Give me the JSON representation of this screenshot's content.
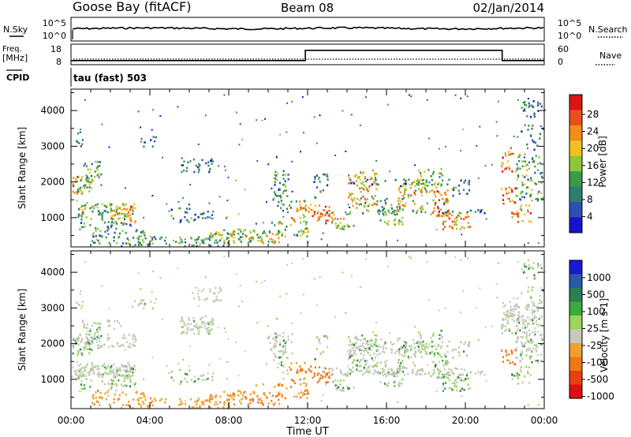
{
  "header": {
    "station": "Goose Bay (fitACF)",
    "beam": "Beam 08",
    "date": "02/Jan/2014"
  },
  "strips": {
    "nsky_label": "N.Sky",
    "nsearch_label": "N.Search",
    "noise_ticks_left": [
      "10^5",
      "10^0"
    ],
    "noise_ticks_right": [
      "10^5",
      "10^0"
    ],
    "freq_label_1": "Freq.",
    "freq_label_2": "[MHz]",
    "freq_ticks": [
      "18",
      "8"
    ],
    "nave_label": "Nave",
    "nave_ticks": [
      "60",
      "0"
    ],
    "cpid_label": "CPID",
    "cpid_value": "tau (fast) 503"
  },
  "colors": {
    "power_scale": [
      "#1414c8",
      "#2b4fb4",
      "#2f7d6e",
      "#3a9a4a",
      "#8ec63a",
      "#f0c020",
      "#f38d1a",
      "#e8501a",
      "#dc1414"
    ],
    "velocity_scale": [
      "#1a1ad2",
      "#2b5aa8",
      "#2f7d55",
      "#3aaa3a",
      "#9bd55a",
      "#c8c8c0",
      "#f0a030",
      "#f07818",
      "#e84010",
      "#dc1010"
    ]
  },
  "chart_data": [
    {
      "type": "line",
      "panel": "noise",
      "series": [
        {
          "name": "N.Sky",
          "style": "solid"
        },
        {
          "name": "N.Search",
          "style": "dotted"
        }
      ],
      "ylim_label": [
        "10^0",
        "10^5"
      ]
    },
    {
      "type": "line",
      "panel": "frequency / nave",
      "xlabel": "",
      "series": [
        {
          "name": "Freq.",
          "style": "solid",
          "x": [
            "00:00",
            "11:53",
            "11:53",
            "21:52",
            "21:52",
            "24:00"
          ],
          "values": [
            10,
            10,
            15,
            15,
            10,
            10
          ]
        },
        {
          "name": "Nave",
          "style": "dotted"
        }
      ],
      "ylim_left": [
        8,
        18
      ],
      "ylim_right": [
        0,
        60
      ]
    },
    {
      "type": "heatmap",
      "panel": "power",
      "title": "",
      "ylabel": "Slant Range [km]",
      "xlabel": "",
      "colorbar_label": "Power [dB]",
      "colorbar_ticks": [
        "28",
        "24",
        "20",
        "16",
        "12",
        "8",
        "4"
      ],
      "x_ticks": [
        "00:00",
        "04:00",
        "08:00",
        "12:00",
        "16:00",
        "20:00",
        "00:00"
      ],
      "y_ticks": [
        "4000",
        "3000",
        "2000",
        "1000"
      ],
      "xlim": [
        0,
        24
      ],
      "ylim": [
        180,
        4600
      ],
      "zlim": [
        0,
        30
      ]
    },
    {
      "type": "heatmap",
      "panel": "velocity",
      "ylabel": "Slant Range [km]",
      "xlabel": "Time UT",
      "colorbar_label": "Velocity [m s-1]",
      "colorbar_ticks": [
        "1000",
        "500",
        "100",
        "25",
        "-25",
        "-100",
        "-500",
        "-1000"
      ],
      "x_ticks": [
        "00:00",
        "04:00",
        "08:00",
        "12:00",
        "16:00",
        "20:00",
        "00:00"
      ],
      "y_ticks": [
        "4000",
        "3000",
        "2000",
        "1000"
      ],
      "xlim": [
        0,
        24
      ],
      "ylim": [
        180,
        4600
      ]
    }
  ]
}
